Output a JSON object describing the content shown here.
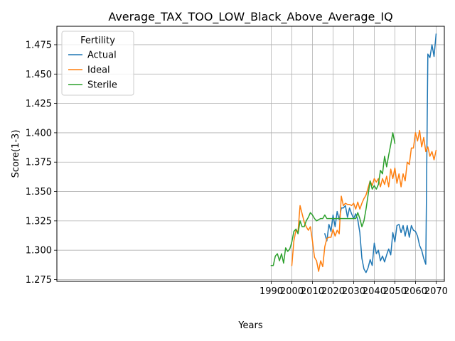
{
  "chart_data": {
    "type": "line",
    "title": "Average_TAX_TOO_LOW_Black_Above_Average_IQ",
    "xlabel": "Years",
    "ylabel": "Score(1-3)",
    "xlim": [
      1886,
      2074
    ],
    "ylim": [
      1.2735,
      1.4907
    ],
    "xticks": [
      1990,
      2000,
      2010,
      2020,
      2030,
      2040,
      2050,
      2060,
      2070
    ],
    "xtick_labels": [
      "1990",
      "2000",
      "2010",
      "2020",
      "2030",
      "2040",
      "2050",
      "2060",
      "2070"
    ],
    "yticks": [
      1.275,
      1.3,
      1.325,
      1.35,
      1.375,
      1.4,
      1.425,
      1.45,
      1.475
    ],
    "ytick_labels": [
      "1.275",
      "1.300",
      "1.325",
      "1.350",
      "1.375",
      "1.400",
      "1.425",
      "1.450",
      "1.475"
    ],
    "grid": true,
    "legend": {
      "title": "Fertility",
      "placement": "top-left"
    },
    "series": [
      {
        "name": "Actual",
        "color": "#1f77b4",
        "x": [
          2016,
          2017,
          2018,
          2019,
          2020,
          2021,
          2022,
          2023,
          2024,
          2025,
          2026,
          2027,
          2028,
          2029,
          2030,
          2031,
          2032,
          2033,
          2034,
          2035,
          2036,
          2037,
          2038,
          2039,
          2040,
          2041,
          2042,
          2043,
          2044,
          2045,
          2046,
          2047,
          2048,
          2049,
          2050,
          2051,
          2052,
          2053,
          2054,
          2055,
          2056,
          2057,
          2058,
          2059,
          2060,
          2061,
          2062,
          2063,
          2064,
          2065,
          2066,
          2067,
          2068,
          2069,
          2070
        ],
        "y": [
          1.314,
          1.308,
          1.322,
          1.316,
          1.33,
          1.32,
          1.333,
          1.326,
          1.336,
          1.336,
          1.338,
          1.328,
          1.336,
          1.331,
          1.327,
          1.331,
          1.326,
          1.315,
          1.293,
          1.284,
          1.281,
          1.285,
          1.292,
          1.287,
          1.306,
          1.297,
          1.3,
          1.291,
          1.295,
          1.29,
          1.296,
          1.301,
          1.296,
          1.315,
          1.307,
          1.321,
          1.322,
          1.315,
          1.321,
          1.312,
          1.321,
          1.311,
          1.321,
          1.317,
          1.316,
          1.312,
          1.304,
          1.3,
          1.293,
          1.288,
          1.467,
          1.464,
          1.475,
          1.465,
          1.484
        ]
      },
      {
        "name": "Ideal",
        "color": "#ff7f0e",
        "x": [
          2000,
          2001,
          2002,
          2003,
          2004,
          2005,
          2006,
          2007,
          2008,
          2009,
          2010,
          2011,
          2012,
          2013,
          2014,
          2015,
          2016,
          2017,
          2018,
          2019,
          2020,
          2021,
          2022,
          2023,
          2024,
          2025,
          2026,
          2027,
          2028,
          2029,
          2030,
          2031,
          2032,
          2033,
          2034,
          2035,
          2036,
          2037,
          2038,
          2039,
          2040,
          2041,
          2042,
          2043,
          2044,
          2045,
          2046,
          2047,
          2048,
          2049,
          2050,
          2051,
          2052,
          2053,
          2054,
          2055,
          2056,
          2057,
          2058,
          2059,
          2060,
          2061,
          2062,
          2063,
          2064,
          2065,
          2066,
          2067,
          2068,
          2069,
          2070
        ],
        "y": [
          1.287,
          1.308,
          1.317,
          1.316,
          1.338,
          1.331,
          1.324,
          1.32,
          1.317,
          1.32,
          1.308,
          1.294,
          1.291,
          1.282,
          1.291,
          1.286,
          1.303,
          1.31,
          1.311,
          1.311,
          1.318,
          1.312,
          1.317,
          1.314,
          1.346,
          1.338,
          1.34,
          1.339,
          1.339,
          1.338,
          1.34,
          1.335,
          1.341,
          1.335,
          1.34,
          1.344,
          1.347,
          1.353,
          1.359,
          1.355,
          1.361,
          1.358,
          1.361,
          1.354,
          1.361,
          1.356,
          1.363,
          1.354,
          1.369,
          1.361,
          1.37,
          1.357,
          1.365,
          1.354,
          1.365,
          1.359,
          1.375,
          1.373,
          1.387,
          1.387,
          1.4,
          1.393,
          1.402,
          1.388,
          1.396,
          1.384,
          1.388,
          1.38,
          1.384,
          1.377,
          1.385
        ]
      },
      {
        "name": "Sterile",
        "color": "#2ca02c",
        "x": [
          1990,
          1991,
          1992,
          1993,
          1994,
          1995,
          1996,
          1997,
          1998,
          1999,
          2000,
          2001,
          2002,
          2003,
          2004,
          2005,
          2006,
          2007,
          2008,
          2009,
          2010,
          2011,
          2012,
          2013,
          2014,
          2015,
          2016,
          2017,
          2018,
          2019,
          2020,
          2021,
          2022,
          2023,
          2024,
          2025,
          2026,
          2027,
          2028,
          2029,
          2030,
          2031,
          2032,
          2033,
          2034,
          2035,
          2036,
          2037,
          2038,
          2039,
          2040,
          2041,
          2042,
          2043,
          2044,
          2045,
          2046,
          2047,
          2048,
          2049,
          2050
        ],
        "y": [
          1.287,
          1.287,
          1.295,
          1.297,
          1.291,
          1.297,
          1.289,
          1.302,
          1.299,
          1.301,
          1.307,
          1.316,
          1.318,
          1.314,
          1.325,
          1.32,
          1.32,
          1.325,
          1.328,
          1.332,
          1.33,
          1.327,
          1.325,
          1.326,
          1.327,
          1.327,
          1.33,
          1.327,
          1.327,
          1.327,
          1.327,
          1.327,
          1.327,
          1.327,
          1.327,
          1.327,
          1.327,
          1.327,
          1.327,
          1.327,
          1.327,
          1.327,
          1.332,
          1.327,
          1.32,
          1.325,
          1.335,
          1.347,
          1.359,
          1.352,
          1.355,
          1.352,
          1.356,
          1.368,
          1.365,
          1.38,
          1.371,
          1.381,
          1.39,
          1.4,
          1.391
        ]
      }
    ]
  }
}
